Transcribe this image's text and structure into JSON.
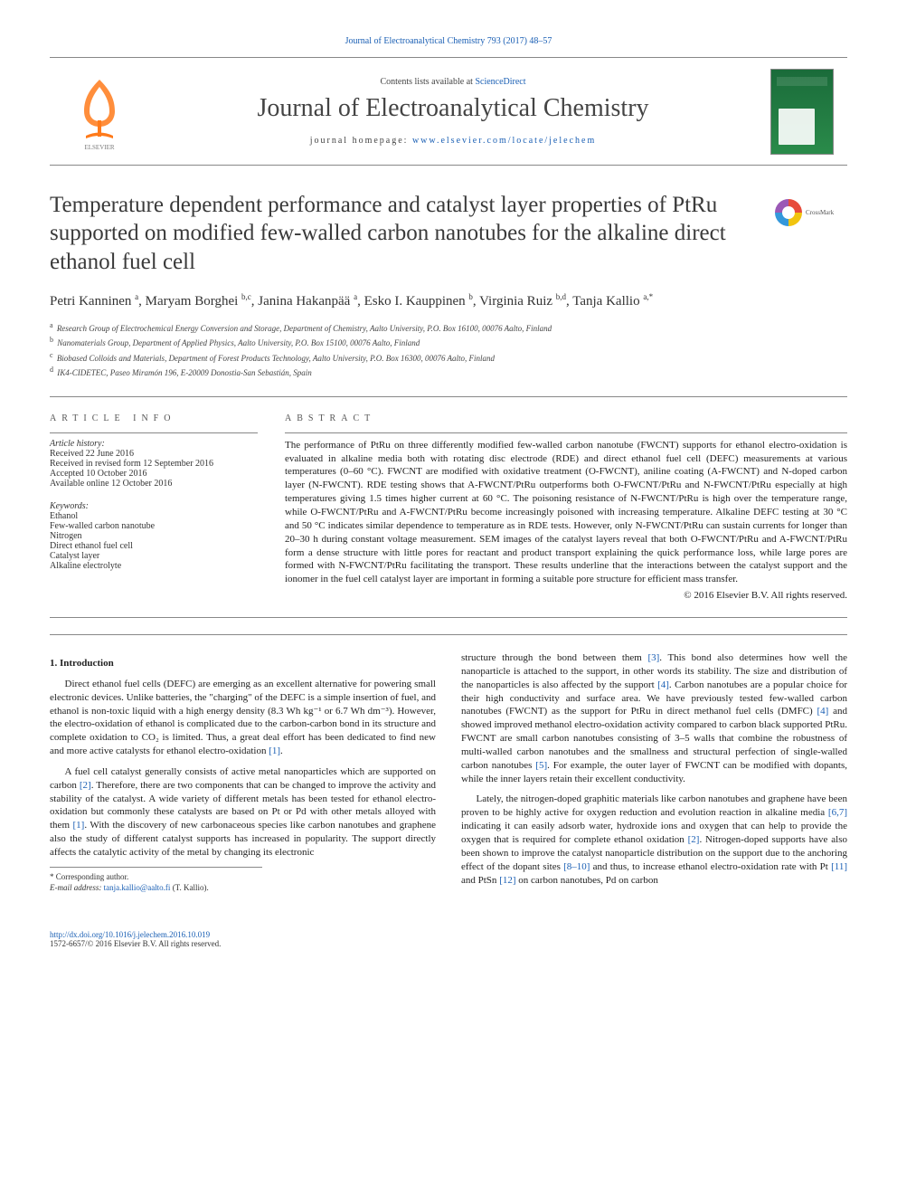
{
  "top_link": "Journal of Electroanalytical Chemistry 793 (2017) 48–57",
  "masthead": {
    "contents_prefix": "Contents lists available at ",
    "contents_link": "ScienceDirect",
    "journal_name": "Journal of Electroanalytical Chemistry",
    "homepage_prefix": "journal homepage: ",
    "homepage_url": "www.elsevier.com/locate/jelechem",
    "elsevier_logo_color": "#ff7a1a",
    "cover_colors": {
      "top": "#1a6b3a",
      "bottom": "#2a8b4a"
    }
  },
  "title": "Temperature dependent performance and catalyst layer properties of PtRu supported on modified few-walled carbon nanotubes for the alkaline direct ethanol fuel cell",
  "crossmark_label": "CrossMark",
  "authors_html": "Petri Kanninen <sup>a</sup>, Maryam Borghei <sup>b,c</sup>, Janina Hakanpää <sup>a</sup>, Esko I. Kauppinen <sup>b</sup>, Virginia Ruiz <sup>b,d</sup>, Tanja Kallio <sup>a,*</sup>",
  "affiliations": [
    {
      "key": "a",
      "text": "Research Group of Electrochemical Energy Conversion and Storage, Department of Chemistry, Aalto University, P.O. Box 16100, 00076 Aalto, Finland"
    },
    {
      "key": "b",
      "text": "Nanomaterials Group, Department of Applied Physics, Aalto University, P.O. Box 15100, 00076 Aalto, Finland"
    },
    {
      "key": "c",
      "text": "Biobased Colloids and Materials, Department of Forest Products Technology, Aalto University, P.O. Box 16300, 00076 Aalto, Finland"
    },
    {
      "key": "d",
      "text": "IK4-CIDETEC, Paseo Miramón 196, E-20009 Donostia-San Sebastián, Spain"
    }
  ],
  "article_info": {
    "heading": "article info",
    "history_label": "Article history:",
    "history": [
      "Received 22 June 2016",
      "Received in revised form 12 September 2016",
      "Accepted 10 October 2016",
      "Available online 12 October 2016"
    ],
    "keywords_label": "Keywords:",
    "keywords": [
      "Ethanol",
      "Few-walled carbon nanotube",
      "Nitrogen",
      "Direct ethanol fuel cell",
      "Catalyst layer",
      "Alkaline electrolyte"
    ]
  },
  "abstract": {
    "heading": "abstract",
    "text": "The performance of PtRu on three differently modified few-walled carbon nanotube (FWCNT) supports for ethanol electro-oxidation is evaluated in alkaline media both with rotating disc electrode (RDE) and direct ethanol fuel cell (DEFC) measurements at various temperatures (0–60 °C). FWCNT are modified with oxidative treatment (O-FWCNT), aniline coating (A-FWCNT) and N-doped carbon layer (N-FWCNT). RDE testing shows that A-FWCNT/PtRu outperforms both O-FWCNT/PtRu and N-FWCNT/PtRu especially at high temperatures giving 1.5 times higher current at 60 °C. The poisoning resistance of N-FWCNT/PtRu is high over the temperature range, while O-FWCNT/PtRu and A-FWCNT/PtRu become increasingly poisoned with increasing temperature. Alkaline DEFC testing at 30 °C and 50 °C indicates similar dependence to temperature as in RDE tests. However, only N-FWCNT/PtRu can sustain currents for longer than 20–30 h during constant voltage measurement. SEM images of the catalyst layers reveal that both O-FWCNT/PtRu and A-FWCNT/PtRu form a dense structure with little pores for reactant and product transport explaining the quick performance loss, while large pores are formed with N-FWCNT/PtRu facilitating the transport. These results underline that the interactions between the catalyst support and the ionomer in the fuel cell catalyst layer are important in forming a suitable pore structure for efficient mass transfer.",
    "copyright": "© 2016 Elsevier B.V. All rights reserved."
  },
  "section_heading": "1. Introduction",
  "paragraphs": {
    "p1_a": "Direct ethanol fuel cells (DEFC) are emerging as an excellent alternative for powering small electronic devices. Unlike batteries, the \"charging\" of the DEFC is a simple insertion of fuel, and ethanol is non-toxic liquid with a high energy density (8.3 Wh kg⁻¹ or 6.7 Wh dm⁻³). However, the electro-oxidation of ethanol is complicated due to the carbon-carbon bond in its structure and complete oxidation to CO₂ is limited. Thus, a great deal effort has been dedicated to find new and more active catalysts for ethanol electro-oxidation ",
    "p1_ref1": "[1]",
    "p1_b": ".",
    "p2_a": "A fuel cell catalyst generally consists of active metal nanoparticles which are supported on carbon ",
    "p2_ref2": "[2]",
    "p2_b": ". Therefore, there are two components that can be changed to improve the activity and stability of the catalyst. A wide variety of different metals has been tested for ethanol electro-oxidation but commonly these catalysts are based on Pt or Pd with other metals alloyed with them ",
    "p2_ref1": "[1]",
    "p2_c": ". With the discovery of new carbonaceous species like carbon nanotubes and graphene also the study of different catalyst supports has increased in popularity. The support directly affects the catalytic activity of the metal by changing its electronic",
    "p3_a": "structure through the bond between them ",
    "p3_ref3": "[3]",
    "p3_b": ". This bond also determines how well the nanoparticle is attached to the support, in other words its stability. The size and distribution of the nanoparticles is also affected by the support ",
    "p3_ref4": "[4]",
    "p3_c": ". Carbon nanotubes are a popular choice for their high conductivity and surface area. We have previously tested few-walled carbon nanotubes (FWCNT) as the support for PtRu in direct methanol fuel cells (DMFC) ",
    "p3_ref4b": "[4]",
    "p3_d": " and showed improved methanol electro-oxidation activity compared to carbon black supported PtRu. FWCNT are small carbon nanotubes consisting of 3–5 walls that combine the robustness of multi-walled carbon nanotubes and the smallness and structural perfection of single-walled carbon nanotubes ",
    "p3_ref5": "[5]",
    "p3_e": ". For example, the outer layer of FWCNT can be modified with dopants, while the inner layers retain their excellent conductivity.",
    "p4_a": "Lately, the nitrogen-doped graphitic materials like carbon nanotubes and graphene have been proven to be highly active for oxygen reduction and evolution reaction in alkaline media ",
    "p4_ref67": "[6,7]",
    "p4_b": " indicating it can easily adsorb water, hydroxide ions and oxygen that can help to provide the oxygen that is required for complete ethanol oxidation ",
    "p4_ref2": "[2]",
    "p4_c": ". Nitrogen-doped supports have also been shown to improve the catalyst nanoparticle distribution on the support due to the anchoring effect of the dopant sites ",
    "p4_ref810": "[8–10]",
    "p4_d": " and thus, to increase ethanol electro-oxidation rate with Pt ",
    "p4_ref11": "[11]",
    "p4_e": " and PtSn ",
    "p4_ref12": "[12]",
    "p4_f": " on carbon nanotubes, Pd on carbon"
  },
  "footnotes": {
    "corresponding": "* Corresponding author.",
    "email_label": "E-mail address: ",
    "email": "tanja.kallio@aalto.fi",
    "email_suffix": " (T. Kallio)."
  },
  "doi": {
    "url": "http://dx.doi.org/10.1016/j.jelechem.2016.10.019",
    "issn_line": "1572-6657/© 2016 Elsevier B.V. All rights reserved."
  }
}
